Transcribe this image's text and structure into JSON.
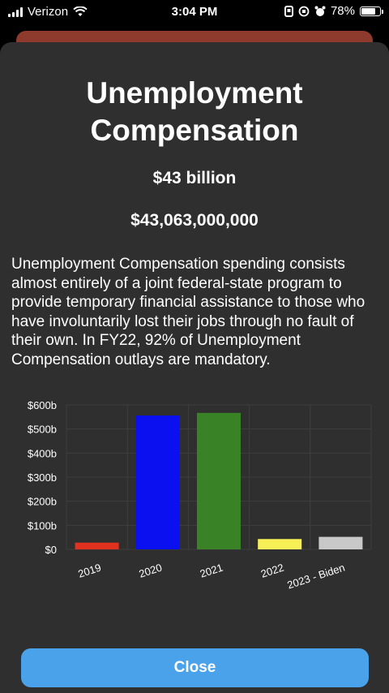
{
  "status": {
    "carrier": "Verizon",
    "time": "3:04 PM",
    "battery": "78%",
    "battery_level": 0.78
  },
  "detail": {
    "title": "Unemployment Compensation",
    "amount_short": "$43 billion",
    "amount_full": "$43,063,000,000",
    "description": "Unemployment Compensation spending consists almost entirely of a joint federal-state program to provide temporary financial assistance to those who have involuntarily lost their jobs through no fault of their own. In FY22, 92% of Unemployment Compensation outlays are mandatory."
  },
  "chart_data": {
    "type": "bar",
    "categories": [
      "2019",
      "2020",
      "2021",
      "2022",
      "2023 - Biden"
    ],
    "values": [
      28,
      556,
      567,
      43,
      52
    ],
    "colors": [
      "#e0321e",
      "#0a10f0",
      "#3a8226",
      "#f6f056",
      "#c8c8c8"
    ],
    "ylim": [
      0,
      600
    ],
    "yticks": [
      "$0",
      "$100b",
      "$200b",
      "$300b",
      "$400b",
      "$500b",
      "$600b"
    ],
    "grid": true
  },
  "actions": {
    "close_label": "Close"
  }
}
